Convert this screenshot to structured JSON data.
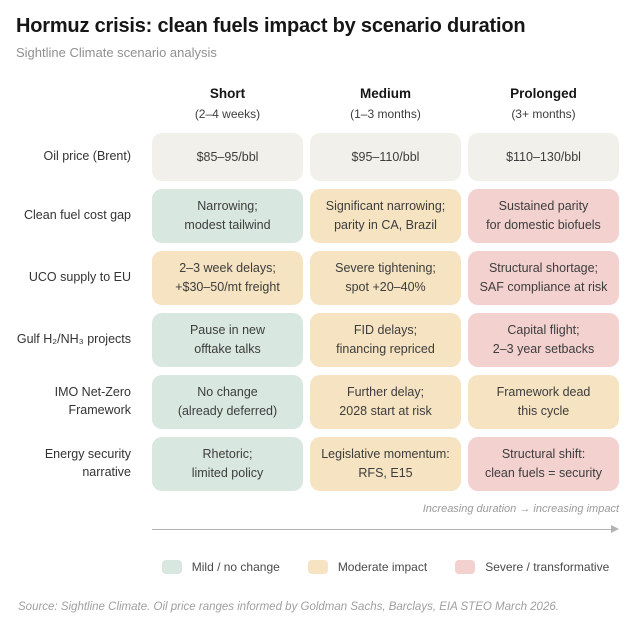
{
  "chart_data": {
    "type": "table",
    "title": "Hormuz crisis: clean fuels impact by scenario duration",
    "subtitle": "Sightline Climate scenario analysis",
    "columns": [
      {
        "label": "Short",
        "sublabel": "(2–4 weeks)"
      },
      {
        "label": "Medium",
        "sublabel": "(1–3 months)"
      },
      {
        "label": "Prolonged",
        "sublabel": "(3+ months)"
      }
    ],
    "rows": [
      {
        "label": "Oil price (Brent)",
        "cells": [
          {
            "lines": [
              "$85–95/bbl"
            ],
            "severity": "neutral"
          },
          {
            "lines": [
              "$95–110/bbl"
            ],
            "severity": "neutral"
          },
          {
            "lines": [
              "$110–130/bbl"
            ],
            "severity": "neutral"
          }
        ]
      },
      {
        "label": "Clean fuel cost gap",
        "cells": [
          {
            "lines": [
              "Narrowing;",
              "modest tailwind"
            ],
            "severity": "mild"
          },
          {
            "lines": [
              "Significant narrowing;",
              "parity in CA, Brazil"
            ],
            "severity": "moderate"
          },
          {
            "lines": [
              "Sustained parity",
              "for domestic biofuels"
            ],
            "severity": "severe"
          }
        ]
      },
      {
        "label": "UCO supply to EU",
        "cells": [
          {
            "lines": [
              "2–3 week delays;",
              "+$30–50/mt freight"
            ],
            "severity": "moderate"
          },
          {
            "lines": [
              "Severe tightening;",
              "spot +20–40%"
            ],
            "severity": "moderate"
          },
          {
            "lines": [
              "Structural shortage;",
              "SAF compliance at risk"
            ],
            "severity": "severe"
          }
        ]
      },
      {
        "label": "Gulf H₂/NH₃ projects",
        "cells": [
          {
            "lines": [
              "Pause in new",
              "offtake talks"
            ],
            "severity": "mild"
          },
          {
            "lines": [
              "FID delays;",
              "financing repriced"
            ],
            "severity": "moderate"
          },
          {
            "lines": [
              "Capital flight;",
              "2–3 year setbacks"
            ],
            "severity": "severe"
          }
        ]
      },
      {
        "label": "IMO Net-Zero Framework",
        "cells": [
          {
            "lines": [
              "No change",
              "(already deferred)"
            ],
            "severity": "mild"
          },
          {
            "lines": [
              "Further delay;",
              "2028 start at risk"
            ],
            "severity": "moderate"
          },
          {
            "lines": [
              "Framework dead",
              "this cycle"
            ],
            "severity": "moderate"
          }
        ]
      },
      {
        "label": "Energy security narrative",
        "cells": [
          {
            "lines": [
              "Rhetoric;",
              "limited policy"
            ],
            "severity": "mild"
          },
          {
            "lines": [
              "Legislative momentum:",
              "RFS, E15"
            ],
            "severity": "moderate"
          },
          {
            "lines": [
              "Structural shift:",
              "clean fuels = security"
            ],
            "severity": "severe"
          }
        ]
      }
    ],
    "annotation": "Increasing duration → increasing impact",
    "legend": [
      {
        "label": "Mild / no change",
        "severity": "mild",
        "color": "#d8e8e0"
      },
      {
        "label": "Moderate impact",
        "severity": "moderate",
        "color": "#f5e3c1"
      },
      {
        "label": "Severe / transformative",
        "severity": "severe",
        "color": "#f2d1cf"
      }
    ],
    "severity_colors": {
      "neutral": "#f1f0ea",
      "mild": "#d8e8e0",
      "moderate": "#f5e3c1",
      "severe": "#f2d1cf"
    },
    "source": "Source: Sightline Climate. Oil price ranges informed by Goldman Sachs, Barclays, EIA STEO March 2026."
  }
}
